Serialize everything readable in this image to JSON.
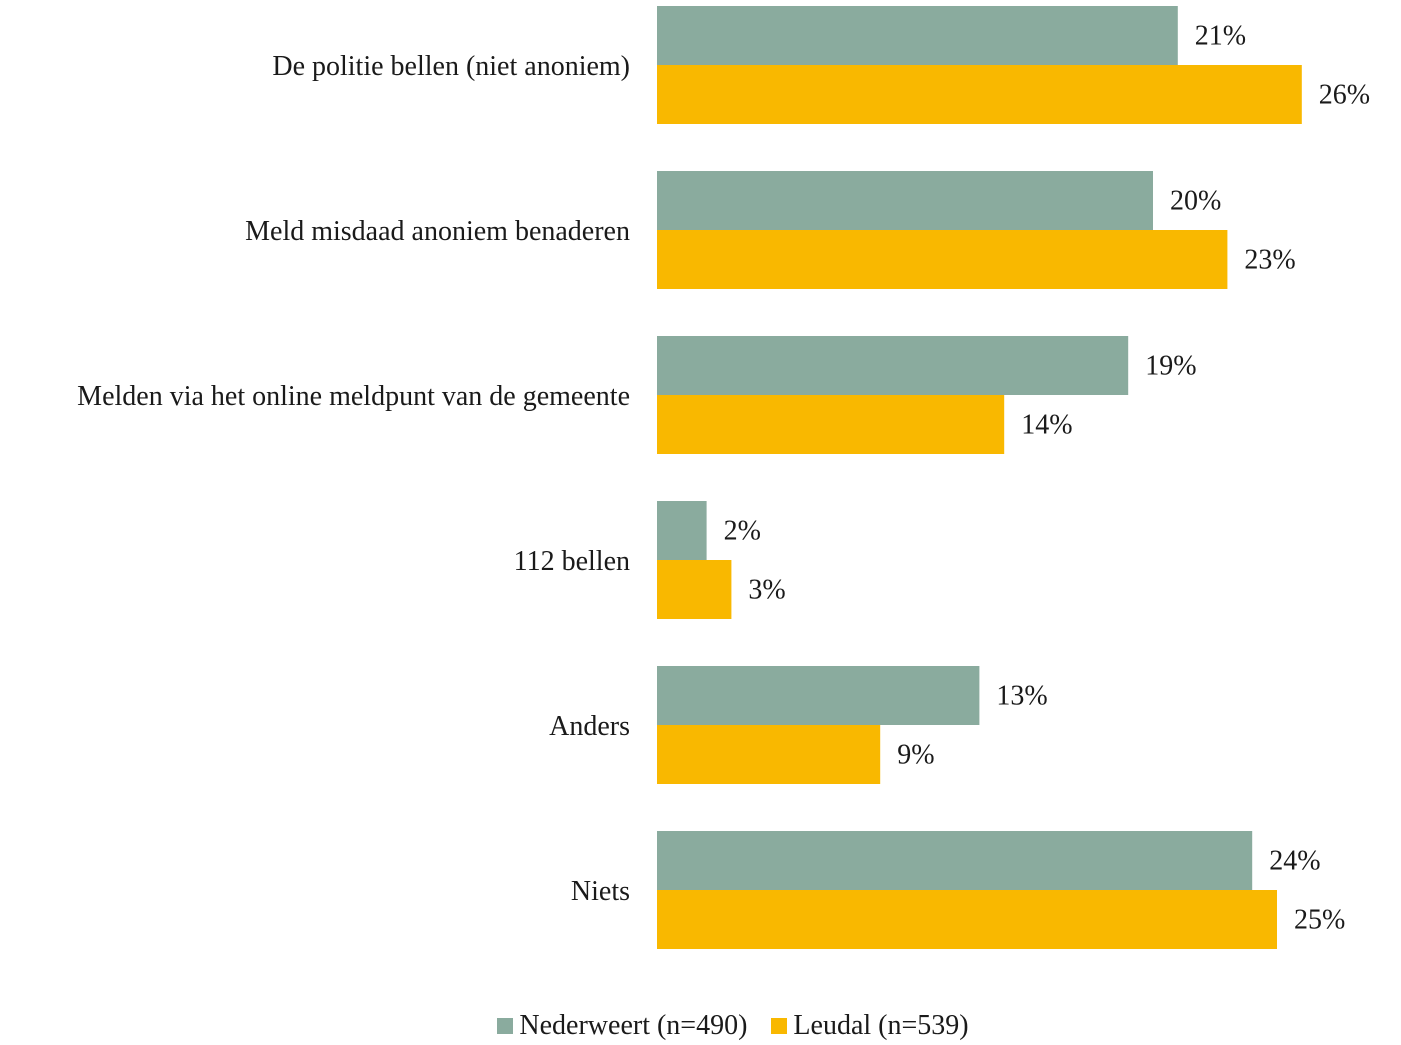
{
  "chart_data": {
    "type": "bar",
    "orientation": "horizontal",
    "categories": [
      "De politie bellen (niet anoniem)",
      "Meld misdaad anoniem benaderen",
      "Melden via het online meldpunt van de gemeente",
      "112 bellen",
      "Anders",
      "Niets"
    ],
    "series": [
      {
        "name": "Nederweert (n=490)",
        "color": "#8aab9e",
        "values": [
          21,
          20,
          19,
          2,
          13,
          24
        ],
        "labels": [
          "21%",
          "20%",
          "19%",
          "2%",
          "13%",
          "24%"
        ]
      },
      {
        "name": "Leudal (n=539)",
        "color": "#f9b800",
        "values": [
          26,
          23,
          14,
          3,
          9,
          25
        ],
        "labels": [
          "26%",
          "23%",
          "14%",
          "3%",
          "9%",
          "25%"
        ]
      }
    ],
    "xlim": [
      0,
      26
    ],
    "grid": false,
    "legend_position": "bottom",
    "title": "",
    "xlabel": "",
    "ylabel": ""
  }
}
